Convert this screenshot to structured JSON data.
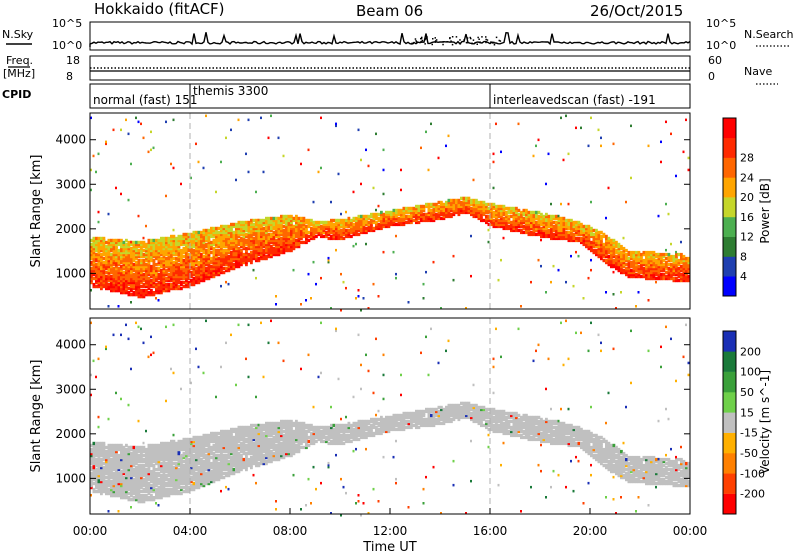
{
  "header": {
    "station": "Hokkaido (fitACF)",
    "beam": "Beam 06",
    "date": "26/Oct/2015"
  },
  "noise_panel": {
    "left_label": "N.Sky",
    "left_ticks": [
      "10^5",
      "10^0"
    ],
    "right_ticks": [
      "10^5",
      "10^0"
    ],
    "right_label": "N.Search"
  },
  "freq_panel": {
    "left_label_1": "Freq.",
    "left_label_2": "[MHz]",
    "left_ticks": [
      "18",
      "8"
    ],
    "right_ticks": [
      "60",
      "0"
    ],
    "right_label": "Nave"
  },
  "cpid_panel": {
    "label": "CPID",
    "segments": [
      {
        "name": "normal (fast) 151",
        "start_h": 0.0,
        "end_h": 4.0
      },
      {
        "name": "themis 3300",
        "start_h": 4.0,
        "end_h": 16.0
      },
      {
        "name": "interleavedscan (fast) -191",
        "start_h": 16.0,
        "end_h": 24.0
      }
    ]
  },
  "colors": {
    "power": [
      "#0000ff",
      "#1f3fb0",
      "#2e7d32",
      "#4caf50",
      "#c5d62a",
      "#ffa500",
      "#ff6600",
      "#ff2a00",
      "#ff0000"
    ],
    "velocity": [
      "#1a2fb5",
      "#1a7a3a",
      "#3aa03a",
      "#6fd04a",
      "#c0c0c0",
      "#ffb000",
      "#ff8000",
      "#ff4000",
      "#ff0000"
    ],
    "ground_scatter": "#c0c0c0"
  },
  "chart_data": [
    {
      "type": "heatmap",
      "name": "power",
      "ylabel": "Slant Range [km]",
      "ylim": [
        200,
        4600
      ],
      "yticks": [
        "1000",
        "2000",
        "3000",
        "4000"
      ],
      "xlim_h": [
        0,
        24
      ],
      "colorbar_label": "Power [dB]",
      "colorbar_ticks": [
        "4",
        "8",
        "12",
        "16",
        "20",
        "24",
        "28"
      ],
      "echo_band_km": {
        "hours": [
          0,
          2,
          4,
          6,
          8,
          9,
          10,
          12,
          14,
          15,
          16,
          18,
          19.5,
          20.5,
          21.5,
          24
        ],
        "low": [
          700,
          450,
          700,
          1150,
          1500,
          1800,
          1750,
          2050,
          2200,
          2350,
          2050,
          1800,
          1700,
          1250,
          900,
          800
        ],
        "high": [
          1800,
          1700,
          1900,
          2150,
          2300,
          2150,
          2200,
          2400,
          2600,
          2700,
          2550,
          2350,
          2150,
          1900,
          1500,
          1400
        ]
      }
    },
    {
      "type": "heatmap",
      "name": "velocity",
      "ylabel": "Slant Range [km]",
      "ylim": [
        200,
        4600
      ],
      "yticks": [
        "1000",
        "2000",
        "3000",
        "4000"
      ],
      "xlim_h": [
        0,
        24
      ],
      "xlabel": "Time UT",
      "xticks": [
        "00:00",
        "04:00",
        "08:00",
        "12:00",
        "16:00",
        "20:00",
        "00:00"
      ],
      "colorbar_label": "Velocity [m s^-1]",
      "colorbar_ticks": [
        "200",
        "100",
        "50",
        "15",
        "-15",
        "-50",
        "-100",
        "-200"
      ]
    }
  ]
}
